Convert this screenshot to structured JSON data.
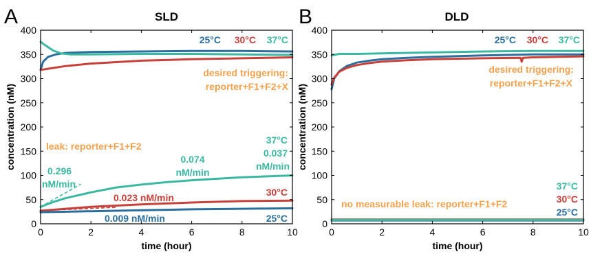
{
  "colors": {
    "c25": "#2b6e9e",
    "c30": "#c8403a",
    "c37": "#3bb8a2",
    "orange": "#f2a24e"
  },
  "chart_data": [
    {
      "panel_letter": "A",
      "type": "line",
      "title": "SLD",
      "xlabel": "time (hour)",
      "ylabel": "concentration (nM)",
      "xlim": [
        0,
        10
      ],
      "ylim": [
        0,
        400
      ],
      "xticks": [
        "0",
        "2",
        "4",
        "6",
        "8",
        "10"
      ],
      "yticks": [
        "0",
        "50",
        "100",
        "150",
        "200",
        "250",
        "300",
        "350",
        "400"
      ],
      "legend": [
        "25°C",
        "30°C",
        "37°C"
      ],
      "series": [
        {
          "name": "25°C",
          "group": "trigger",
          "color": "#2b6e9e",
          "x": [
            0,
            0.1,
            0.3,
            0.6,
            1,
            1.5,
            2,
            4,
            6,
            8,
            10
          ],
          "y": [
            318,
            335,
            345,
            350,
            353,
            354,
            355,
            356,
            357,
            357,
            356
          ]
        },
        {
          "name": "30°C",
          "group": "trigger",
          "color": "#c8403a",
          "x": [
            0,
            0.5,
            1,
            2,
            3,
            4,
            6,
            8,
            10
          ],
          "y": [
            318,
            322,
            326,
            331,
            334,
            337,
            340,
            342,
            344
          ]
        },
        {
          "name": "37°C",
          "group": "trigger",
          "color": "#3bb8a2",
          "x": [
            0,
            0.1,
            0.3,
            0.5,
            0.8,
            1.2,
            2,
            4,
            6,
            8,
            10
          ],
          "y": [
            376,
            372,
            365,
            358,
            352,
            350,
            350,
            351,
            351,
            350,
            349
          ]
        },
        {
          "name": "37°C",
          "group": "leak",
          "color": "#3bb8a2",
          "x": [
            0,
            0.5,
            1,
            2,
            3,
            4,
            5,
            6,
            7,
            8,
            9,
            10
          ],
          "y": [
            35,
            45,
            53,
            65,
            75,
            81,
            86,
            90,
            93,
            96,
            98,
            100
          ]
        },
        {
          "name": "30°C",
          "group": "leak",
          "color": "#c8403a",
          "x": [
            0,
            1,
            2,
            4,
            6,
            8,
            10
          ],
          "y": [
            27,
            31,
            35,
            40,
            44,
            47,
            48
          ]
        },
        {
          "name": "25°C",
          "group": "leak",
          "color": "#2b6e9e",
          "x": [
            0,
            2,
            4,
            6,
            8,
            10
          ],
          "y": [
            24,
            26,
            28,
            30,
            31,
            32
          ]
        }
      ],
      "fit_lines": [
        {
          "color": "#3bb8a2",
          "x": [
            0,
            1.6
          ],
          "y": [
            35,
            82
          ]
        },
        {
          "color": "#c8403a",
          "x": [
            0,
            3
          ],
          "y": [
            27,
            34
          ]
        }
      ],
      "annotations": {
        "desired_line1": "desired triggering:",
        "desired_line2": "reporter+F1+F2+X",
        "leak_label": "leak: reporter+F1+F2",
        "rate37_initial_value": "0.296",
        "rate37_initial_unit": "nM/min",
        "rate37_mid_value": "0.074",
        "rate37_mid_unit": "nM/min",
        "label37": "37°C",
        "rate37_end_value": "0.037",
        "rate37_end_unit": "nM/min",
        "label30": "30°C",
        "rate30": "0.023 nM/min",
        "rate25": "0.009 nM/min",
        "label25": "25°C"
      }
    },
    {
      "panel_letter": "B",
      "type": "line",
      "title": "DLD",
      "xlabel": "time (hour)",
      "ylabel": "concentration (nM)",
      "xlim": [
        0,
        10
      ],
      "ylim": [
        0,
        400
      ],
      "xticks": [
        "0",
        "2",
        "4",
        "6",
        "8",
        "10"
      ],
      "yticks": [
        "0",
        "50",
        "100",
        "150",
        "200",
        "250",
        "300",
        "350",
        "400"
      ],
      "legend": [
        "25°C",
        "30°C",
        "37°C"
      ],
      "series": [
        {
          "name": "25°C",
          "group": "trigger",
          "color": "#2b6e9e",
          "x": [
            0,
            0.1,
            0.3,
            0.6,
            1,
            1.5,
            2,
            3,
            4,
            6,
            8,
            10
          ],
          "y": [
            278,
            300,
            315,
            326,
            333,
            337,
            340,
            343,
            345,
            348,
            350,
            350
          ]
        },
        {
          "name": "30°C",
          "group": "trigger",
          "color": "#c8403a",
          "x": [
            0,
            0.1,
            0.3,
            0.6,
            1,
            1.5,
            2,
            3,
            4,
            6,
            7.5,
            7.55,
            7.6,
            8,
            10
          ],
          "y": [
            288,
            302,
            314,
            322,
            328,
            332,
            335,
            338,
            340,
            342,
            343,
            335,
            343,
            344,
            346
          ]
        },
        {
          "name": "37°C",
          "group": "trigger",
          "color": "#3bb8a2",
          "x": [
            0,
            0.3,
            1,
            2,
            4,
            6,
            8,
            10
          ],
          "y": [
            348,
            351,
            351,
            352,
            354,
            356,
            357,
            357
          ]
        },
        {
          "name": "25°C",
          "group": "leak",
          "color": "#2b6e9e",
          "x": [
            0,
            10
          ],
          "y": [
            7,
            7
          ]
        },
        {
          "name": "30°C",
          "group": "leak",
          "color": "#c8403a",
          "x": [
            0,
            10
          ],
          "y": [
            9,
            9
          ]
        },
        {
          "name": "37°C",
          "group": "leak",
          "color": "#3bb8a2",
          "x": [
            0,
            10
          ],
          "y": [
            8,
            8
          ]
        }
      ],
      "annotations": {
        "desired_line1": "desired triggering:",
        "desired_line2": "reporter+F1+F2+X",
        "leak_label": "no measurable leak: reporter+F1+F2",
        "label37": "37°C",
        "label30": "30°C",
        "label25": "25°C"
      }
    }
  ]
}
